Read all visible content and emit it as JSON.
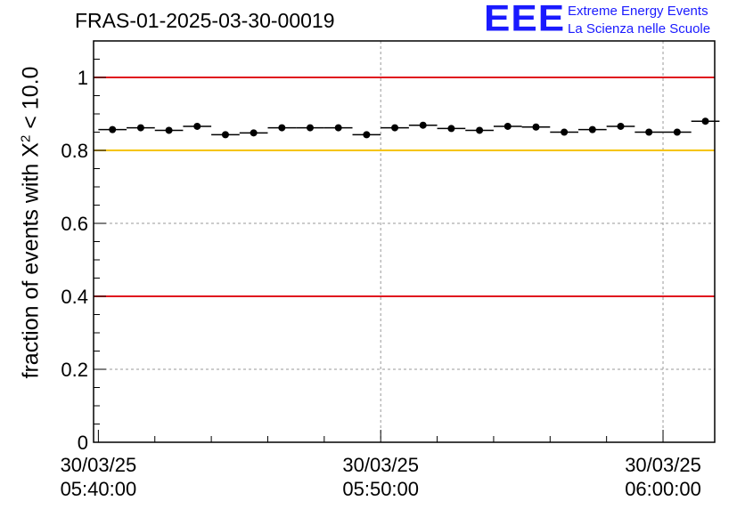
{
  "header": {
    "title": "FRAS-01-2025-03-30-00019"
  },
  "logo": {
    "mark": "EEE",
    "line1": "Extreme Energy Events",
    "line2": "La Scienza nelle Scuole"
  },
  "y_label": {
    "prefix": "fraction of events with ",
    "symbol": "X",
    "superscript": "2",
    "suffix": " < 10.0"
  },
  "colors": {
    "red_line": "#e0141e",
    "yellow_line": "#f5c400",
    "grid": "#999999",
    "marker": "#000000",
    "logo": "#1a1aff"
  },
  "chart_data": {
    "type": "scatter",
    "title": "FRAS-01-2025-03-30-00019",
    "xlabel": "",
    "ylabel": "fraction of events with X^2 < 10.0",
    "x_unit": "minutes after 05:40:00",
    "xlim": [
      -0.17,
      21.83
    ],
    "ylim": [
      0,
      1.1
    ],
    "bin_width_minutes": 1,
    "x_tick_labels": [
      {
        "x": 0,
        "date": "30/03/25",
        "time": "05:40:00"
      },
      {
        "x": 10,
        "date": "30/03/25",
        "time": "05:50:00"
      },
      {
        "x": 20,
        "date": "30/03/25",
        "time": "06:00:00"
      }
    ],
    "y_ticks": [
      0,
      0.2,
      0.4,
      0.6,
      0.8,
      1
    ],
    "y_tick_labels": [
      "0",
      "0.2",
      "0.4",
      "0.6",
      "0.8",
      "1"
    ],
    "reference_lines": [
      {
        "y": 1.0,
        "color": "red"
      },
      {
        "y": 0.8,
        "color": "yellow"
      },
      {
        "y": 0.4,
        "color": "red"
      }
    ],
    "series": [
      {
        "name": "fraction",
        "x": [
          0.5,
          1.5,
          2.5,
          3.5,
          4.5,
          5.5,
          6.5,
          7.5,
          8.5,
          9.5,
          10.5,
          11.5,
          12.5,
          13.5,
          14.5,
          15.5,
          16.5,
          17.5,
          18.5,
          19.5,
          20.5,
          21.5
        ],
        "values": [
          0.857,
          0.862,
          0.855,
          0.866,
          0.843,
          0.848,
          0.862,
          0.862,
          0.862,
          0.843,
          0.862,
          0.869,
          0.86,
          0.855,
          0.866,
          0.864,
          0.85,
          0.857,
          0.866,
          0.85,
          0.85,
          0.88
        ]
      }
    ]
  }
}
